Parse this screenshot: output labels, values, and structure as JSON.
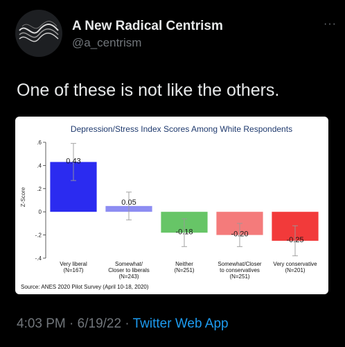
{
  "author": {
    "display_name": "A New Radical Centrism",
    "handle": "@a_centrism",
    "more_glyph": "···"
  },
  "tweet": {
    "text": "One of these is not like the others."
  },
  "chart_data": {
    "type": "bar",
    "title": "Depression/Stress Index Scores Among White Respondents",
    "ylabel": "Z-Score",
    "ylim": [
      -0.4,
      0.6
    ],
    "yticks": [
      ".6",
      ".4",
      ".2",
      "0",
      "-.2",
      "-.4"
    ],
    "ytick_values": [
      0.6,
      0.4,
      0.2,
      0,
      -0.2,
      -0.4
    ],
    "categories": [
      [
        "Very liberal",
        "(N=167)"
      ],
      [
        "Somewhat/",
        "Closer to liberals",
        "(N=243)"
      ],
      [
        "Neither",
        "(N=251)"
      ],
      [
        "Somewhat/Closer",
        "to conservatives",
        "(N=251)"
      ],
      [
        "Very conservative",
        "(N=201)"
      ]
    ],
    "values": [
      0.43,
      0.05,
      -0.18,
      -0.2,
      -0.25
    ],
    "value_labels": [
      "0.43",
      "0.05",
      "-0.18",
      "-0.20",
      "-0.25"
    ],
    "ci_low": [
      0.27,
      -0.07,
      -0.3,
      -0.3,
      -0.38
    ],
    "ci_high": [
      0.59,
      0.17,
      -0.06,
      -0.1,
      -0.12
    ],
    "colors": [
      "#2b2bf0",
      "#8d8df2",
      "#67c567",
      "#f47b7b",
      "#f23a3a"
    ],
    "source": "Source: ANES 2020 Pilot Survey (April 10-18, 2020)",
    "grid": false
  },
  "footer": {
    "time": "4:03 PM",
    "separator1": " · ",
    "date": "6/19/22",
    "separator2": " · ",
    "app": "Twitter Web App"
  }
}
